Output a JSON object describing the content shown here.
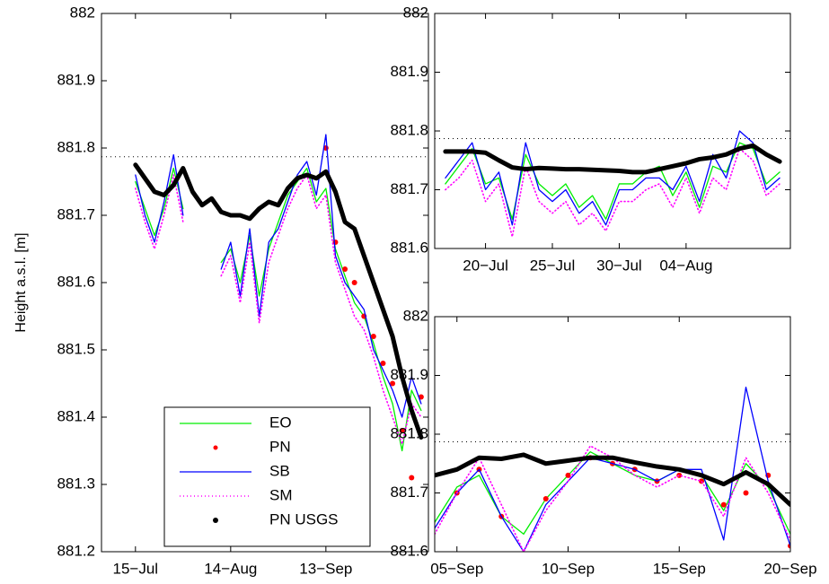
{
  "chart_data": [
    {
      "type": "line",
      "ylabel": "Height a.s.l. [m]",
      "legend": "lower center",
      "grid": false,
      "hline": 881.787,
      "xlim": [
        185.3,
        288.3
      ],
      "ylim": [
        881.2,
        882
      ],
      "xticks": [
        {
          "value": 196,
          "label": "15−Jul"
        },
        {
          "value": 226,
          "label": "14−Aug"
        },
        {
          "value": 256,
          "label": "13−Sep"
        }
      ],
      "yticks": [
        881.2,
        881.3,
        881.4,
        881.5,
        881.6,
        881.7,
        881.8,
        881.9,
        882
      ],
      "x": [
        196,
        199,
        202,
        205,
        208,
        211,
        214,
        217,
        220,
        223,
        226,
        229,
        232,
        235,
        238,
        241,
        244,
        247,
        250,
        253,
        256,
        259,
        262,
        265,
        268,
        271,
        274,
        277,
        280,
        283,
        286
      ],
      "series": [
        {
          "name": "EO",
          "color": "#00ee00",
          "style": "line",
          "values": [
            881.75,
            881.71,
            881.67,
            881.71,
            881.77,
            881.71,
            null,
            null,
            null,
            881.63,
            881.65,
            881.6,
            881.67,
            881.58,
            881.65,
            881.69,
            881.73,
            881.75,
            881.77,
            881.72,
            881.74,
            881.65,
            881.61,
            881.57,
            881.55,
            881.51,
            881.46,
            881.42,
            881.35,
            881.44,
            881.41
          ]
        },
        {
          "name": "PN",
          "color": "#ff0000",
          "style": "dots",
          "values": [
            null,
            null,
            null,
            null,
            null,
            null,
            null,
            null,
            null,
            null,
            null,
            null,
            null,
            null,
            null,
            null,
            null,
            null,
            null,
            null,
            881.8,
            881.66,
            881.62,
            881.6,
            881.55,
            881.52,
            881.48,
            881.45,
            881.38,
            881.31,
            881.43
          ]
        },
        {
          "name": "SB",
          "color": "#0000ff",
          "style": "line",
          "values": [
            881.76,
            881.7,
            881.66,
            881.72,
            881.79,
            881.7,
            null,
            null,
            null,
            881.62,
            881.66,
            881.58,
            881.68,
            881.55,
            881.66,
            881.68,
            881.72,
            881.76,
            881.78,
            881.73,
            881.82,
            881.64,
            881.6,
            881.58,
            881.56,
            881.5,
            881.47,
            881.44,
            881.4,
            881.46,
            881.42
          ]
        },
        {
          "name": "SM",
          "color": "#ff00ff",
          "style": "dotted",
          "values": [
            881.74,
            881.69,
            881.65,
            881.7,
            881.76,
            881.69,
            null,
            null,
            null,
            881.61,
            881.64,
            881.57,
            881.66,
            881.54,
            881.63,
            881.67,
            881.71,
            881.74,
            881.76,
            881.71,
            881.73,
            881.63,
            881.59,
            881.55,
            881.53,
            881.49,
            881.44,
            881.4,
            881.36,
            881.42,
            881.4
          ]
        },
        {
          "name": "PN USGS",
          "color": "#000000",
          "style": "thick",
          "values": [
            881.775,
            881.755,
            881.735,
            881.73,
            881.745,
            881.77,
            881.735,
            881.715,
            881.725,
            881.705,
            881.7,
            881.7,
            881.695,
            881.71,
            881.72,
            881.715,
            881.74,
            881.755,
            881.76,
            881.755,
            881.765,
            881.735,
            881.69,
            881.68,
            881.64,
            881.6,
            881.56,
            881.52,
            881.46,
            881.41,
            881.37
          ]
        }
      ]
    },
    {
      "type": "line",
      "grid": false,
      "hline": 881.787,
      "xlim": [
        197.2,
        223.8
      ],
      "ylim": [
        881.6,
        882
      ],
      "xticks": [
        {
          "value": 201,
          "label": "20−Jul"
        },
        {
          "value": 206,
          "label": "25−Jul"
        },
        {
          "value": 211,
          "label": "30−Jul"
        },
        {
          "value": 216,
          "label": "04−Aug"
        }
      ],
      "yticks": [
        881.6,
        881.7,
        881.8,
        881.9,
        882
      ],
      "x": [
        198,
        199,
        200,
        201,
        202,
        203,
        204,
        205,
        206,
        207,
        208,
        209,
        210,
        211,
        212,
        213,
        214,
        215,
        216,
        217,
        218,
        219,
        220,
        221,
        222,
        223
      ],
      "series": [
        {
          "name": "EO",
          "color": "#00ee00",
          "style": "line",
          "values": [
            881.71,
            881.74,
            881.77,
            881.71,
            881.72,
            881.65,
            881.76,
            881.71,
            881.69,
            881.71,
            881.67,
            881.69,
            881.65,
            881.71,
            881.71,
            881.73,
            881.74,
            881.69,
            881.73,
            881.67,
            881.74,
            881.73,
            881.78,
            881.77,
            881.71,
            881.73
          ]
        },
        {
          "name": "SB",
          "color": "#0000ff",
          "style": "line",
          "values": [
            881.72,
            881.75,
            881.78,
            881.7,
            881.73,
            881.64,
            881.78,
            881.7,
            881.68,
            881.7,
            881.66,
            881.68,
            881.64,
            881.7,
            881.7,
            881.72,
            881.72,
            881.7,
            881.74,
            881.68,
            881.76,
            881.72,
            881.8,
            881.78,
            881.7,
            881.72
          ]
        },
        {
          "name": "SM",
          "color": "#ff00ff",
          "style": "dotted",
          "values": [
            881.7,
            881.72,
            881.75,
            881.68,
            881.71,
            881.62,
            881.74,
            881.68,
            881.66,
            881.68,
            881.64,
            881.66,
            881.63,
            881.68,
            881.68,
            881.7,
            881.71,
            881.67,
            881.72,
            881.66,
            881.72,
            881.7,
            881.77,
            881.75,
            881.69,
            881.71
          ]
        },
        {
          "name": "PN USGS",
          "color": "#000000",
          "style": "thick",
          "values": [
            881.765,
            881.765,
            881.765,
            881.763,
            881.75,
            881.738,
            881.735,
            881.737,
            881.736,
            881.735,
            881.735,
            881.734,
            881.733,
            881.732,
            881.73,
            881.73,
            881.735,
            881.74,
            881.745,
            881.752,
            881.755,
            881.76,
            881.77,
            881.775,
            881.76,
            881.748
          ]
        }
      ]
    },
    {
      "type": "line",
      "grid": false,
      "hline": 881.787,
      "xlim": [
        247,
        263
      ],
      "ylim": [
        881.6,
        882
      ],
      "xticks": [
        {
          "value": 248,
          "label": "05−Sep"
        },
        {
          "value": 253,
          "label": "10−Sep"
        },
        {
          "value": 258,
          "label": "15−Sep"
        },
        {
          "value": 263,
          "label": "20−Sep"
        }
      ],
      "yticks": [
        881.6,
        881.7,
        881.8,
        881.9,
        882
      ],
      "x": [
        247,
        248,
        249,
        250,
        251,
        252,
        253,
        254,
        255,
        256,
        257,
        258,
        259,
        260,
        261,
        262,
        263
      ],
      "series": [
        {
          "name": "EO",
          "color": "#00ee00",
          "style": "line",
          "values": [
            881.65,
            881.71,
            881.73,
            881.66,
            881.63,
            881.69,
            881.73,
            881.77,
            881.75,
            881.73,
            881.72,
            881.74,
            881.73,
            881.67,
            881.75,
            881.71,
            881.63
          ]
        },
        {
          "name": "PN",
          "color": "#ff0000",
          "style": "dots",
          "values": [
            null,
            881.7,
            881.74,
            881.66,
            null,
            881.69,
            881.73,
            881.76,
            881.75,
            881.74,
            881.72,
            881.73,
            881.72,
            881.68,
            881.7,
            881.73,
            881.61
          ]
        },
        {
          "name": "SB",
          "color": "#0000ff",
          "style": "line",
          "values": [
            881.64,
            881.7,
            881.74,
            881.66,
            881.6,
            881.68,
            881.72,
            881.76,
            881.75,
            881.74,
            881.72,
            881.74,
            881.74,
            881.62,
            881.88,
            881.72,
            881.61
          ]
        },
        {
          "name": "SM",
          "color": "#ff00ff",
          "style": "dotted",
          "values": [
            881.63,
            881.7,
            881.76,
            881.68,
            881.6,
            881.67,
            881.72,
            881.78,
            881.76,
            881.73,
            881.71,
            881.73,
            881.72,
            881.66,
            881.76,
            881.7,
            881.62
          ]
        },
        {
          "name": "PN USGS",
          "color": "#000000",
          "style": "thick",
          "values": [
            881.73,
            881.74,
            881.76,
            881.758,
            881.765,
            881.75,
            881.755,
            881.76,
            881.76,
            881.752,
            881.745,
            881.74,
            881.73,
            881.715,
            881.735,
            881.715,
            881.68
          ]
        }
      ]
    }
  ]
}
